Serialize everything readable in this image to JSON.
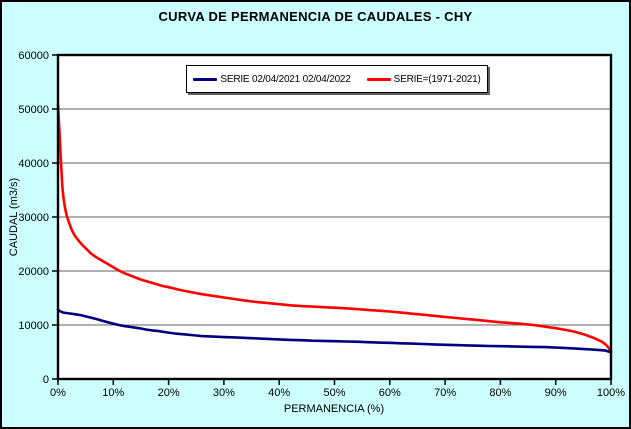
{
  "window": {
    "background_color": "#CCFFFF",
    "border_color": "#000000"
  },
  "chart_data": {
    "type": "line",
    "title": "CURVA DE PERMANENCIA DE CAUDALES - CHY",
    "xlabel": "PERMANENCIA (%)",
    "ylabel": "CAUDAL (m3/s)",
    "xlim": [
      0,
      100
    ],
    "ylim": [
      0,
      60000
    ],
    "x_ticks": [
      0,
      10,
      20,
      30,
      40,
      50,
      60,
      70,
      80,
      90,
      100
    ],
    "xtick_labels": [
      "0%",
      "10%",
      "20%",
      "30%",
      "40%",
      "50%",
      "60%",
      "70%",
      "80%",
      "90%",
      "100%"
    ],
    "ytick_values": [
      0,
      10000,
      20000,
      30000,
      40000,
      50000,
      60000
    ],
    "ytick_labels": [
      "0",
      "10000",
      "20000",
      "30000",
      "40000",
      "50000",
      "60000"
    ],
    "grid": "horizontal-only",
    "grid_color": "#808080",
    "plot_background": "#FFFFFF",
    "axis_color": "#000000",
    "legend_position": "top-center-inside",
    "series": [
      {
        "name": "SERIE 02/04/2021 02/04/2022",
        "color": "#000080",
        "points": [
          [
            0,
            12900
          ],
          [
            0.3,
            12600
          ],
          [
            0.7,
            12400
          ],
          [
            1,
            12300
          ],
          [
            2,
            12150
          ],
          [
            3,
            12000
          ],
          [
            4,
            11850
          ],
          [
            5,
            11600
          ],
          [
            6,
            11350
          ],
          [
            7,
            11100
          ],
          [
            8,
            10800
          ],
          [
            9,
            10500
          ],
          [
            10,
            10250
          ],
          [
            11,
            10000
          ],
          [
            12,
            9800
          ],
          [
            13,
            9650
          ],
          [
            14,
            9500
          ],
          [
            15,
            9350
          ],
          [
            16,
            9150
          ],
          [
            17,
            9000
          ],
          [
            18,
            8900
          ],
          [
            19,
            8750
          ],
          [
            20,
            8600
          ],
          [
            21,
            8450
          ],
          [
            22,
            8350
          ],
          [
            23,
            8250
          ],
          [
            24,
            8150
          ],
          [
            25,
            8050
          ],
          [
            26,
            7950
          ],
          [
            27,
            7900
          ],
          [
            28,
            7850
          ],
          [
            30,
            7750
          ],
          [
            32,
            7700
          ],
          [
            34,
            7620
          ],
          [
            36,
            7520
          ],
          [
            38,
            7420
          ],
          [
            40,
            7330
          ],
          [
            42,
            7250
          ],
          [
            44,
            7180
          ],
          [
            46,
            7100
          ],
          [
            48,
            7050
          ],
          [
            50,
            7000
          ],
          [
            52,
            6950
          ],
          [
            54,
            6900
          ],
          [
            56,
            6820
          ],
          [
            58,
            6750
          ],
          [
            60,
            6700
          ],
          [
            62,
            6620
          ],
          [
            64,
            6550
          ],
          [
            66,
            6480
          ],
          [
            68,
            6400
          ],
          [
            70,
            6330
          ],
          [
            72,
            6270
          ],
          [
            74,
            6220
          ],
          [
            76,
            6170
          ],
          [
            78,
            6120
          ],
          [
            80,
            6080
          ],
          [
            82,
            6030
          ],
          [
            84,
            5990
          ],
          [
            86,
            5950
          ],
          [
            88,
            5900
          ],
          [
            90,
            5820
          ],
          [
            92,
            5720
          ],
          [
            94,
            5620
          ],
          [
            96,
            5500
          ],
          [
            98,
            5350
          ],
          [
            99,
            5250
          ],
          [
            100,
            4950
          ]
        ]
      },
      {
        "name": "SERIE=(1971-2021)",
        "color": "#FF0000",
        "points": [
          [
            0,
            50800
          ],
          [
            0.2,
            47000
          ],
          [
            0.4,
            43000
          ],
          [
            0.6,
            39000
          ],
          [
            0.8,
            35500
          ],
          [
            1,
            33500
          ],
          [
            1.3,
            31500
          ],
          [
            1.6,
            30200
          ],
          [
            2,
            28900
          ],
          [
            2.5,
            27600
          ],
          [
            3,
            26600
          ],
          [
            3.5,
            25900
          ],
          [
            4,
            25300
          ],
          [
            4.5,
            24700
          ],
          [
            5,
            24200
          ],
          [
            6,
            23200
          ],
          [
            7,
            22500
          ],
          [
            8,
            21900
          ],
          [
            9,
            21300
          ],
          [
            10,
            20700
          ],
          [
            11,
            20100
          ],
          [
            12,
            19600
          ],
          [
            13,
            19200
          ],
          [
            14,
            18800
          ],
          [
            15,
            18400
          ],
          [
            16,
            18100
          ],
          [
            17,
            17800
          ],
          [
            18,
            17500
          ],
          [
            19,
            17200
          ],
          [
            20,
            17000
          ],
          [
            22,
            16500
          ],
          [
            24,
            16100
          ],
          [
            26,
            15700
          ],
          [
            28,
            15400
          ],
          [
            30,
            15100
          ],
          [
            32,
            14800
          ],
          [
            34,
            14500
          ],
          [
            36,
            14250
          ],
          [
            38,
            14050
          ],
          [
            40,
            13850
          ],
          [
            42,
            13650
          ],
          [
            44,
            13500
          ],
          [
            46,
            13400
          ],
          [
            48,
            13300
          ],
          [
            50,
            13200
          ],
          [
            52,
            13100
          ],
          [
            54,
            12950
          ],
          [
            56,
            12800
          ],
          [
            58,
            12650
          ],
          [
            60,
            12500
          ],
          [
            62,
            12300
          ],
          [
            64,
            12100
          ],
          [
            66,
            11900
          ],
          [
            68,
            11700
          ],
          [
            70,
            11500
          ],
          [
            72,
            11300
          ],
          [
            74,
            11100
          ],
          [
            76,
            10900
          ],
          [
            78,
            10700
          ],
          [
            80,
            10500
          ],
          [
            82,
            10350
          ],
          [
            84,
            10200
          ],
          [
            86,
            10000
          ],
          [
            88,
            9700
          ],
          [
            90,
            9400
          ],
          [
            91,
            9250
          ],
          [
            92,
            9050
          ],
          [
            93,
            8850
          ],
          [
            94,
            8600
          ],
          [
            95,
            8300
          ],
          [
            96,
            7950
          ],
          [
            97,
            7550
          ],
          [
            98,
            7100
          ],
          [
            98.5,
            6800
          ],
          [
            99,
            6400
          ],
          [
            99.4,
            6000
          ],
          [
            99.7,
            5600
          ],
          [
            100,
            5100
          ]
        ]
      }
    ]
  }
}
